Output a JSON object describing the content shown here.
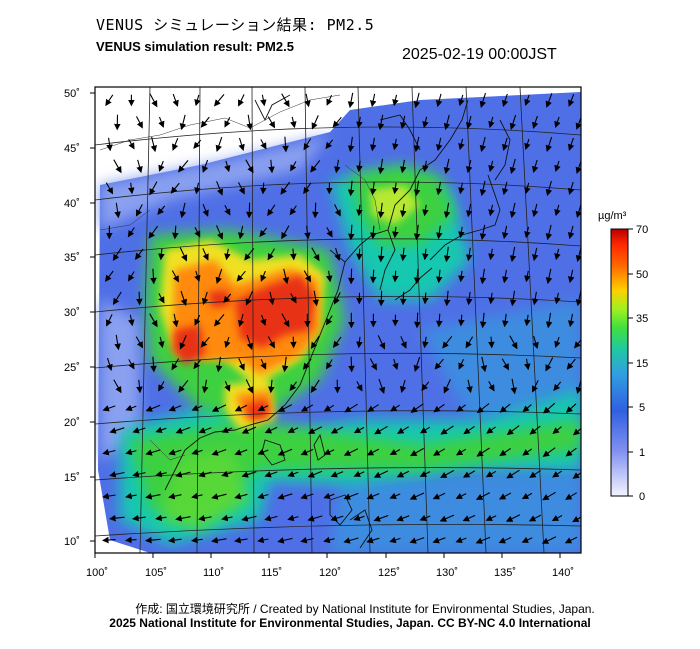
{
  "header": {
    "title_jp": "VENUS シミュレーション結果: PM2.5",
    "title_en": "VENUS simulation result: PM2.5",
    "timestamp": "2025-02-19 00:00JST"
  },
  "map": {
    "lon_ticks": [
      "100˚",
      "105˚",
      "110˚",
      "115˚",
      "120˚",
      "125˚",
      "130˚",
      "135˚",
      "140˚"
    ],
    "lat_ticks": [
      "50˚",
      "45˚",
      "40˚",
      "35˚",
      "30˚",
      "25˚",
      "20˚",
      "15˚",
      "10˚"
    ],
    "lon_range": [
      100,
      141.5
    ],
    "lat_range": [
      9,
      51
    ]
  },
  "colorbar": {
    "unit": "µg/m³",
    "labels": [
      "70",
      "50",
      "35",
      "15",
      "5",
      "1",
      "0"
    ],
    "colors": [
      "#b80000",
      "#ff2a00",
      "#ffb000",
      "#e8ff20",
      "#40e040",
      "#20c8a0",
      "#30a0e0",
      "#3060e0",
      "#8090f0",
      "#e8ecff"
    ]
  },
  "legend_colors": {
    "very_high": "#e83018",
    "high": "#ff8a10",
    "mid_high": "#f0e020",
    "mid": "#3cd040",
    "low_mid": "#18c8b0",
    "low": "#3c8ce0",
    "very_low": "#4f6fe6",
    "trace": "#b9c8f4"
  },
  "footer": {
    "credit_jp_en": "作成: 国立環境研究所 / Created by National Institute for Environmental Studies, Japan.",
    "copyright": "2025 National Institute for Environmental Studies, Japan. CC BY-NC 4.0 International"
  }
}
